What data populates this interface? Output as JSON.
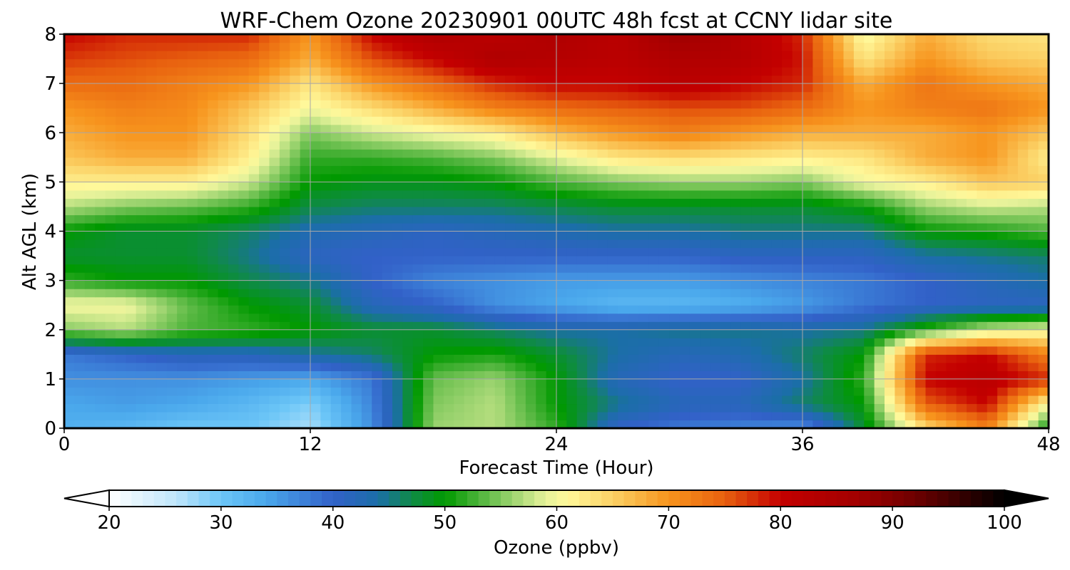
{
  "chart_data": {
    "type": "heatmap",
    "title": "WRF-Chem Ozone  20230901 00UTC 48h fcst at CCNY lidar site",
    "xlabel": "Forecast Time (Hour)",
    "ylabel": "Alt AGL (km)",
    "xlim": [
      0,
      48
    ],
    "ylim": [
      0,
      8
    ],
    "x_ticks": [
      0,
      12,
      24,
      36,
      48
    ],
    "y_ticks": [
      0,
      1,
      2,
      3,
      4,
      5,
      6,
      7,
      8
    ],
    "grid": true,
    "value_unit": "ppbv",
    "colorbar": {
      "label": "Ozone  (ppbv)",
      "min": 20,
      "max": 100,
      "ticks": [
        20,
        30,
        40,
        50,
        60,
        70,
        80,
        90,
        100
      ],
      "extend": "both",
      "colors": [
        {
          "v": 20,
          "c": "#ffffff"
        },
        {
          "v": 26,
          "c": "#bfe6fb"
        },
        {
          "v": 30,
          "c": "#6cc6f7"
        },
        {
          "v": 34,
          "c": "#4aa8ec"
        },
        {
          "v": 40,
          "c": "#3261c8"
        },
        {
          "v": 44,
          "c": "#1b6ea8"
        },
        {
          "v": 47,
          "c": "#0f8a48"
        },
        {
          "v": 50,
          "c": "#009900"
        },
        {
          "v": 53,
          "c": "#4cb33a"
        },
        {
          "v": 56,
          "c": "#9bd36f"
        },
        {
          "v": 59,
          "c": "#e6f29a"
        },
        {
          "v": 61,
          "c": "#fff89a"
        },
        {
          "v": 65,
          "c": "#fbd165"
        },
        {
          "v": 70,
          "c": "#f7941d"
        },
        {
          "v": 75,
          "c": "#e8610f"
        },
        {
          "v": 80,
          "c": "#c40000"
        },
        {
          "v": 87,
          "c": "#a00000"
        },
        {
          "v": 92,
          "c": "#6e0000"
        },
        {
          "v": 100,
          "c": "#000000"
        }
      ]
    },
    "x_hours": [
      0,
      3,
      6,
      9,
      12,
      15,
      18,
      21,
      24,
      27,
      30,
      33,
      36,
      39,
      42,
      45,
      48
    ],
    "z_km": [
      0,
      0.5,
      1,
      1.5,
      2,
      2.5,
      3,
      3.5,
      4,
      4.5,
      5,
      5.5,
      6,
      6.5,
      7,
      7.5,
      8
    ],
    "ozone_ppbv": [
      [
        33,
        32,
        30,
        30,
        27,
        36,
        56,
        57,
        52,
        40,
        38,
        37,
        36,
        48,
        64,
        72,
        50
      ],
      [
        34,
        35,
        34,
        32,
        29,
        37,
        55,
        57,
        50,
        45,
        42,
        42,
        46,
        50,
        75,
        80,
        60
      ],
      [
        36,
        36,
        36,
        35,
        34,
        38,
        54,
        56,
        50,
        42,
        40,
        40,
        44,
        52,
        80,
        82,
        78
      ],
      [
        38,
        40,
        42,
        42,
        44,
        46,
        50,
        51,
        48,
        44,
        42,
        43,
        46,
        50,
        78,
        80,
        72
      ],
      [
        55,
        57,
        53,
        52,
        50,
        48,
        48,
        46,
        44,
        44,
        45,
        45,
        44,
        45,
        52,
        58,
        60
      ],
      [
        60,
        60,
        54,
        50,
        48,
        42,
        40,
        36,
        34,
        32,
        32,
        33,
        35,
        38,
        40,
        41,
        41
      ],
      [
        52,
        50,
        50,
        47,
        45,
        40,
        37,
        36,
        35,
        35,
        35,
        36,
        37,
        38,
        40,
        42,
        44
      ],
      [
        48,
        48,
        48,
        45,
        41,
        40,
        40,
        40,
        40,
        40,
        40,
        41,
        41,
        41,
        44,
        45,
        46
      ],
      [
        50,
        48,
        48,
        46,
        43,
        42,
        41,
        42,
        43,
        44,
        44,
        45,
        45,
        45,
        50,
        51,
        53
      ],
      [
        57,
        55,
        54,
        52,
        47,
        46,
        46,
        46,
        47,
        48,
        48,
        48,
        48,
        50,
        56,
        58,
        57
      ],
      [
        62,
        62,
        62,
        58,
        50,
        49,
        49,
        50,
        53,
        55,
        56,
        56,
        55,
        60,
        62,
        66,
        65
      ],
      [
        66,
        68,
        68,
        62,
        52,
        52,
        53,
        55,
        59,
        63,
        64,
        63,
        62,
        63,
        68,
        70,
        62
      ],
      [
        68,
        70,
        70,
        64,
        55,
        58,
        60,
        62,
        67,
        70,
        72,
        70,
        68,
        68,
        68,
        70,
        66
      ],
      [
        70,
        72,
        71,
        66,
        60,
        64,
        68,
        72,
        74,
        75,
        76,
        76,
        74,
        70,
        72,
        73,
        70
      ],
      [
        74,
        74,
        72,
        70,
        63,
        70,
        74,
        78,
        80,
        80,
        82,
        80,
        78,
        68,
        73,
        70,
        68
      ],
      [
        77,
        76,
        75,
        74,
        68,
        76,
        80,
        84,
        83,
        82,
        84,
        83,
        79,
        63,
        70,
        66,
        65
      ],
      [
        80,
        78,
        78,
        78,
        70,
        80,
        84,
        82,
        84,
        82,
        87,
        83,
        78,
        60,
        68,
        64,
        63
      ]
    ]
  }
}
